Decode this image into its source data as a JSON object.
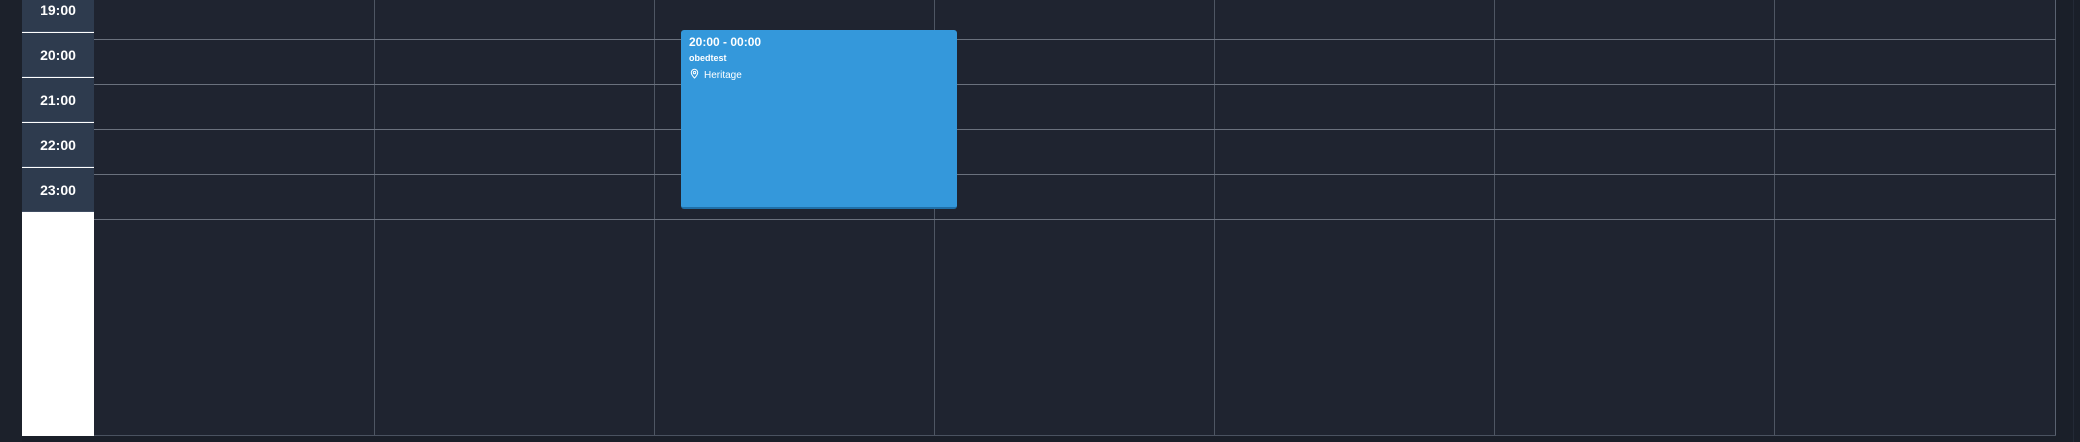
{
  "time_slots": [
    "19:00",
    "20:00",
    "21:00",
    "22:00",
    "23:00"
  ],
  "event": {
    "time_range": "20:00 - 00:00",
    "title": "obedtest",
    "location": "Heritage",
    "color": "#3498db"
  },
  "colors": {
    "grid_background": "#1f2430",
    "time_gutter": "#2e3b4e",
    "grid_line": "#6a717d"
  }
}
